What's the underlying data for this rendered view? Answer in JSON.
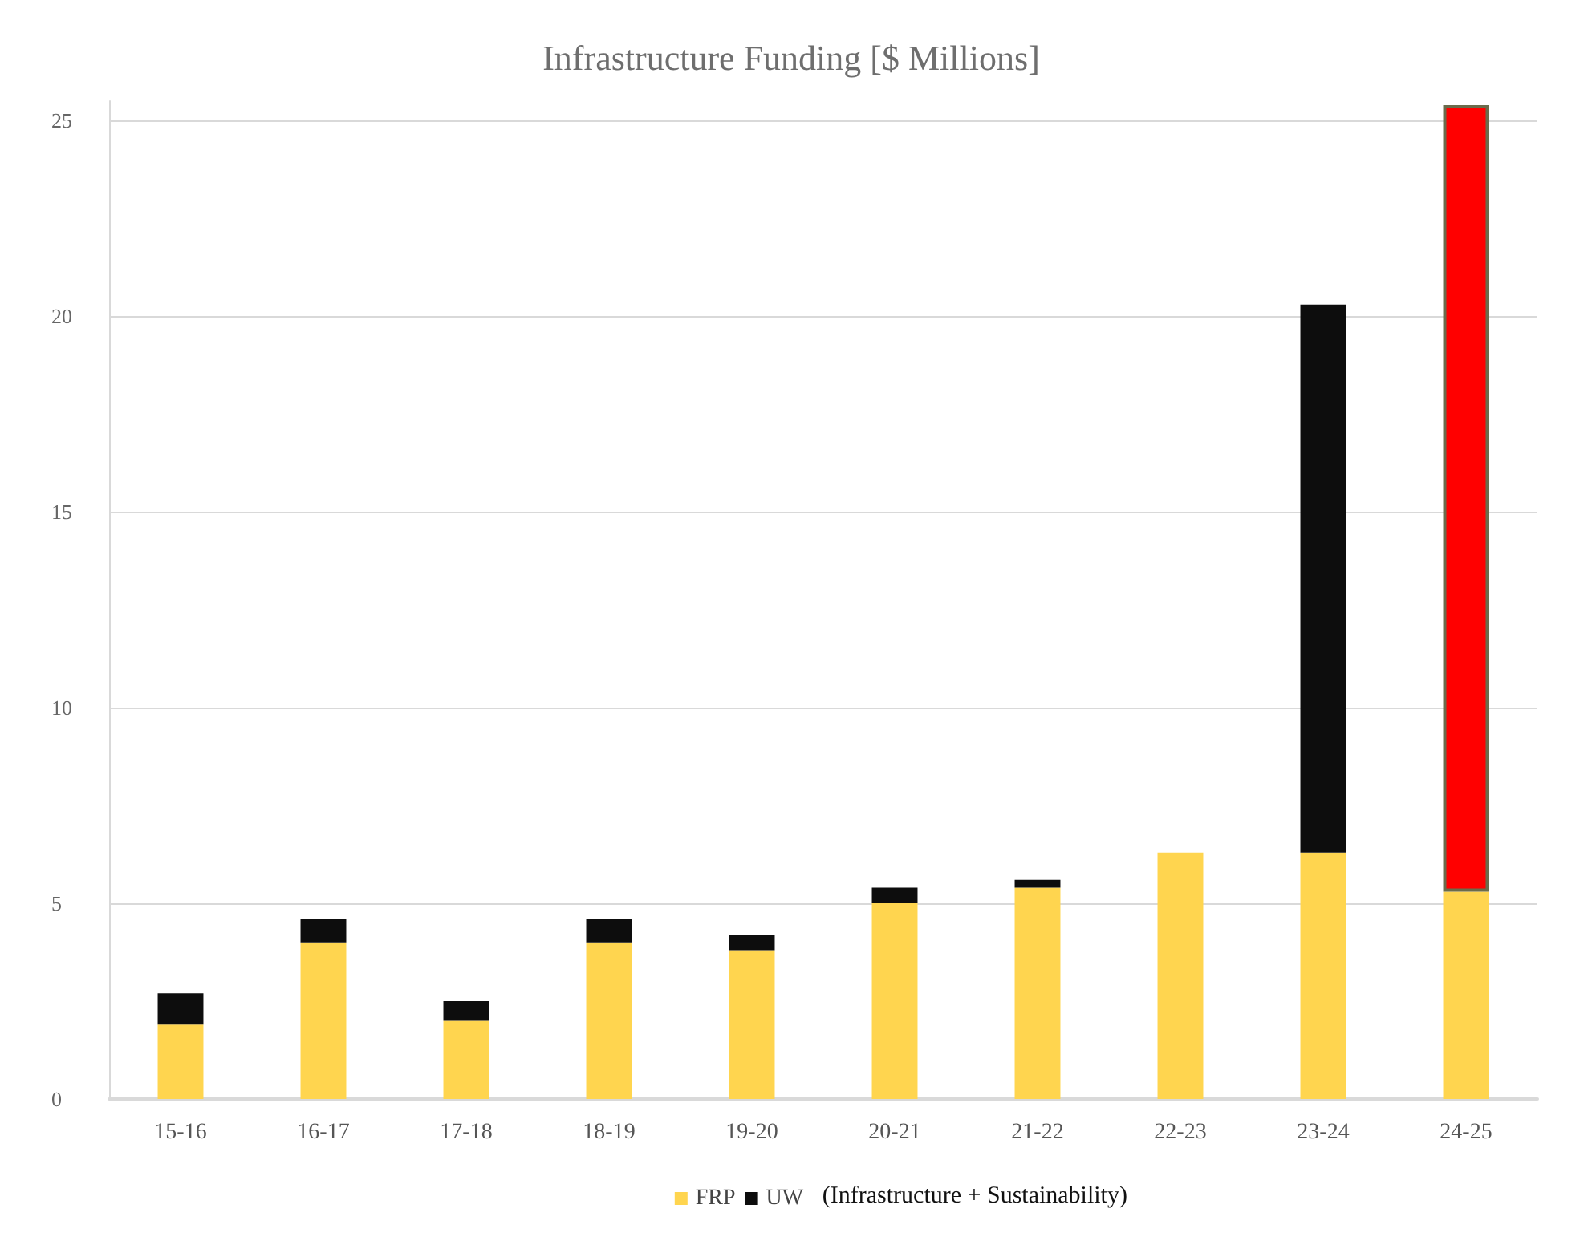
{
  "chart_data": {
    "type": "bar",
    "title": "Infrastructure Funding [$ Millions]",
    "categories": [
      "15-16",
      "16-17",
      "17-18",
      "18-19",
      "19-20",
      "20-21",
      "21-22",
      "22-23",
      "23-24",
      "24-25"
    ],
    "stacked": true,
    "series": [
      {
        "name": "FRP",
        "color": "#ffd54f",
        "values": [
          1.9,
          4.0,
          2.0,
          4.0,
          3.8,
          5.0,
          5.4,
          6.3,
          6.3,
          5.3
        ]
      },
      {
        "name": "UW",
        "color": "#0d0d0d",
        "values": [
          0.8,
          0.6,
          0.5,
          0.6,
          0.4,
          0.4,
          0.2,
          null,
          14.0,
          null
        ]
      },
      {
        "color": "#ff0000",
        "values": [
          null,
          null,
          null,
          null,
          null,
          null,
          null,
          null,
          null,
          20.1
        ]
      }
    ],
    "ylim": [
      0,
      25.5
    ],
    "yticks": [
      0,
      5,
      10,
      15,
      20,
      25
    ],
    "grid": "y",
    "legend": "bottom",
    "annotations": [
      "(Infrastructure + Sustainability)"
    ]
  }
}
